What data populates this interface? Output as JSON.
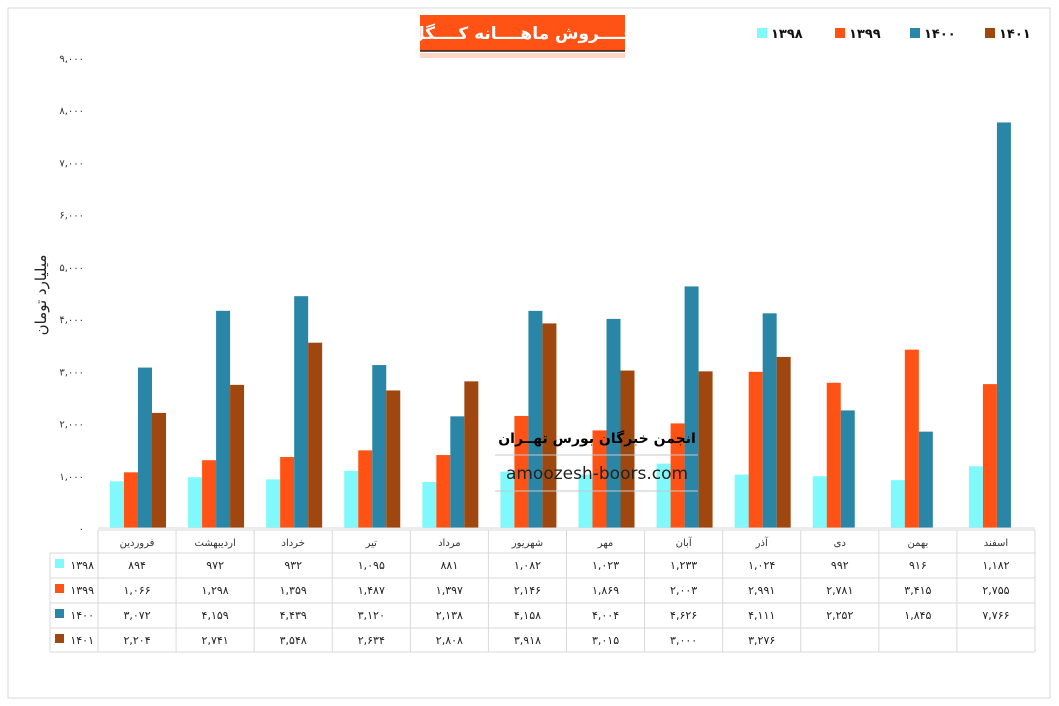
{
  "chart_data": {
    "type": "bar",
    "title": "فــــروش ماهــــانه کــــگل",
    "ylabel": "میلیارد تومان",
    "xlabel": "",
    "ylim": [
      0,
      9000
    ],
    "yticks": [
      0,
      1000,
      2000,
      3000,
      4000,
      5000,
      6000,
      7000,
      8000,
      9000
    ],
    "legend_position": "top-right",
    "grid": false,
    "categories": [
      "فروردین",
      "اردیبهشت",
      "خرداد",
      "تیر",
      "مرداد",
      "شهریور",
      "مهر",
      "آبان",
      "آذر",
      "دی",
      "بهمن",
      "اسفند"
    ],
    "series": [
      {
        "name": "۱۳۹۸",
        "color": "#7ff9fb",
        "values": [
          894,
          972,
          932,
          1095,
          881,
          1082,
          1023,
          1233,
          1024,
          992,
          916,
          1182
        ]
      },
      {
        "name": "۱۳۹۹",
        "color": "#ff5214",
        "values": [
          1066,
          1298,
          1359,
          1487,
          1397,
          2146,
          1869,
          2003,
          2991,
          2781,
          3415,
          2755
        ]
      },
      {
        "name": "۱۴۰۰",
        "color": "#2986a6",
        "values": [
          3072,
          4159,
          4439,
          3120,
          2138,
          4158,
          4004,
          4626,
          4111,
          2252,
          1845,
          7766
        ]
      },
      {
        "name": "۱۴۰۱",
        "color": "#a0470f",
        "values": [
          2204,
          2741,
          3548,
          2634,
          2808,
          3918,
          3015,
          3000,
          3276,
          null,
          null,
          null
        ]
      }
    ],
    "data_table": true
  },
  "watermark": {
    "name": "انجمن خبرگان بورس تهــران",
    "url": "amoozesh-boors.com"
  }
}
